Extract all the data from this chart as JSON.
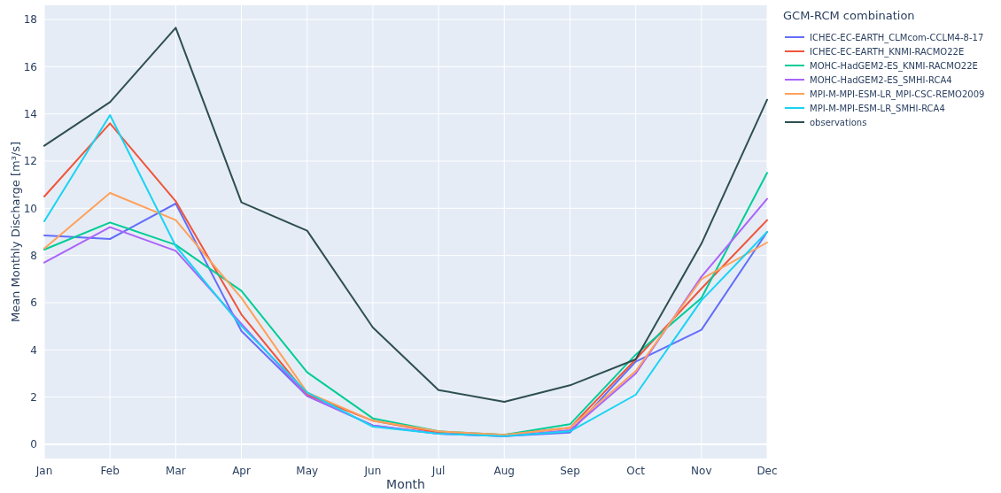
{
  "chart_data": {
    "type": "line",
    "xlabel": "Month",
    "ylabel": "Mean Monthly Discharge [m³/s]",
    "legend_title": "GCM-RCM combination",
    "categories": [
      "Jan",
      "Feb",
      "Mar",
      "Apr",
      "May",
      "Jun",
      "Jul",
      "Aug",
      "Sep",
      "Oct",
      "Nov",
      "Dec"
    ],
    "series": [
      {
        "name": "ICHEC-EC-EARTH_CLMcom-CCLM4-8-17",
        "color": "#636efa",
        "values": [
          8.85,
          8.7,
          10.2,
          4.8,
          2.05,
          0.8,
          0.45,
          0.35,
          0.5,
          3.5,
          4.85,
          9.0
        ]
      },
      {
        "name": "ICHEC-EC-EARTH_KNMI-RACMO22E",
        "color": "#ef553b",
        "values": [
          10.5,
          13.6,
          10.3,
          5.5,
          2.1,
          1.0,
          0.5,
          0.4,
          0.7,
          3.6,
          6.6,
          9.5
        ]
      },
      {
        "name": "MOHC-HadGEM2-ES_KNMI-RACMO22E",
        "color": "#00cc96",
        "values": [
          8.25,
          9.4,
          8.45,
          6.5,
          3.05,
          1.1,
          0.55,
          0.4,
          0.85,
          3.8,
          6.2,
          11.5
        ]
      },
      {
        "name": "MOHC-HadGEM2-ES_SMHI-RCA4",
        "color": "#ab63fa",
        "values": [
          7.7,
          9.2,
          8.2,
          5.1,
          2.05,
          0.8,
          0.45,
          0.35,
          0.6,
          3.0,
          7.1,
          10.4
        ]
      },
      {
        "name": "MPI-M-MPI-ESM-LR_MPI-CSC-REMO2009",
        "color": "#ffa15a",
        "values": [
          8.3,
          10.65,
          9.5,
          6.2,
          2.2,
          1.0,
          0.55,
          0.4,
          0.7,
          3.1,
          7.0,
          8.55
        ]
      },
      {
        "name": "MPI-M-MPI-ESM-LR_SMHI-RCA4",
        "color": "#19d3f3",
        "values": [
          9.45,
          13.95,
          8.4,
          5.0,
          2.2,
          0.75,
          0.45,
          0.35,
          0.55,
          2.1,
          6.1,
          9.0
        ]
      },
      {
        "name": "observations",
        "color": "#2f4f4f",
        "values": [
          12.65,
          14.5,
          17.65,
          10.25,
          9.05,
          4.95,
          2.3,
          1.8,
          2.5,
          3.6,
          8.5,
          14.6
        ]
      }
    ],
    "ylim": [
      -0.6,
      18.6
    ],
    "yticks": [
      0,
      2,
      4,
      6,
      8,
      10,
      12,
      14,
      16,
      18
    ],
    "grid": true,
    "legend": "top right"
  }
}
